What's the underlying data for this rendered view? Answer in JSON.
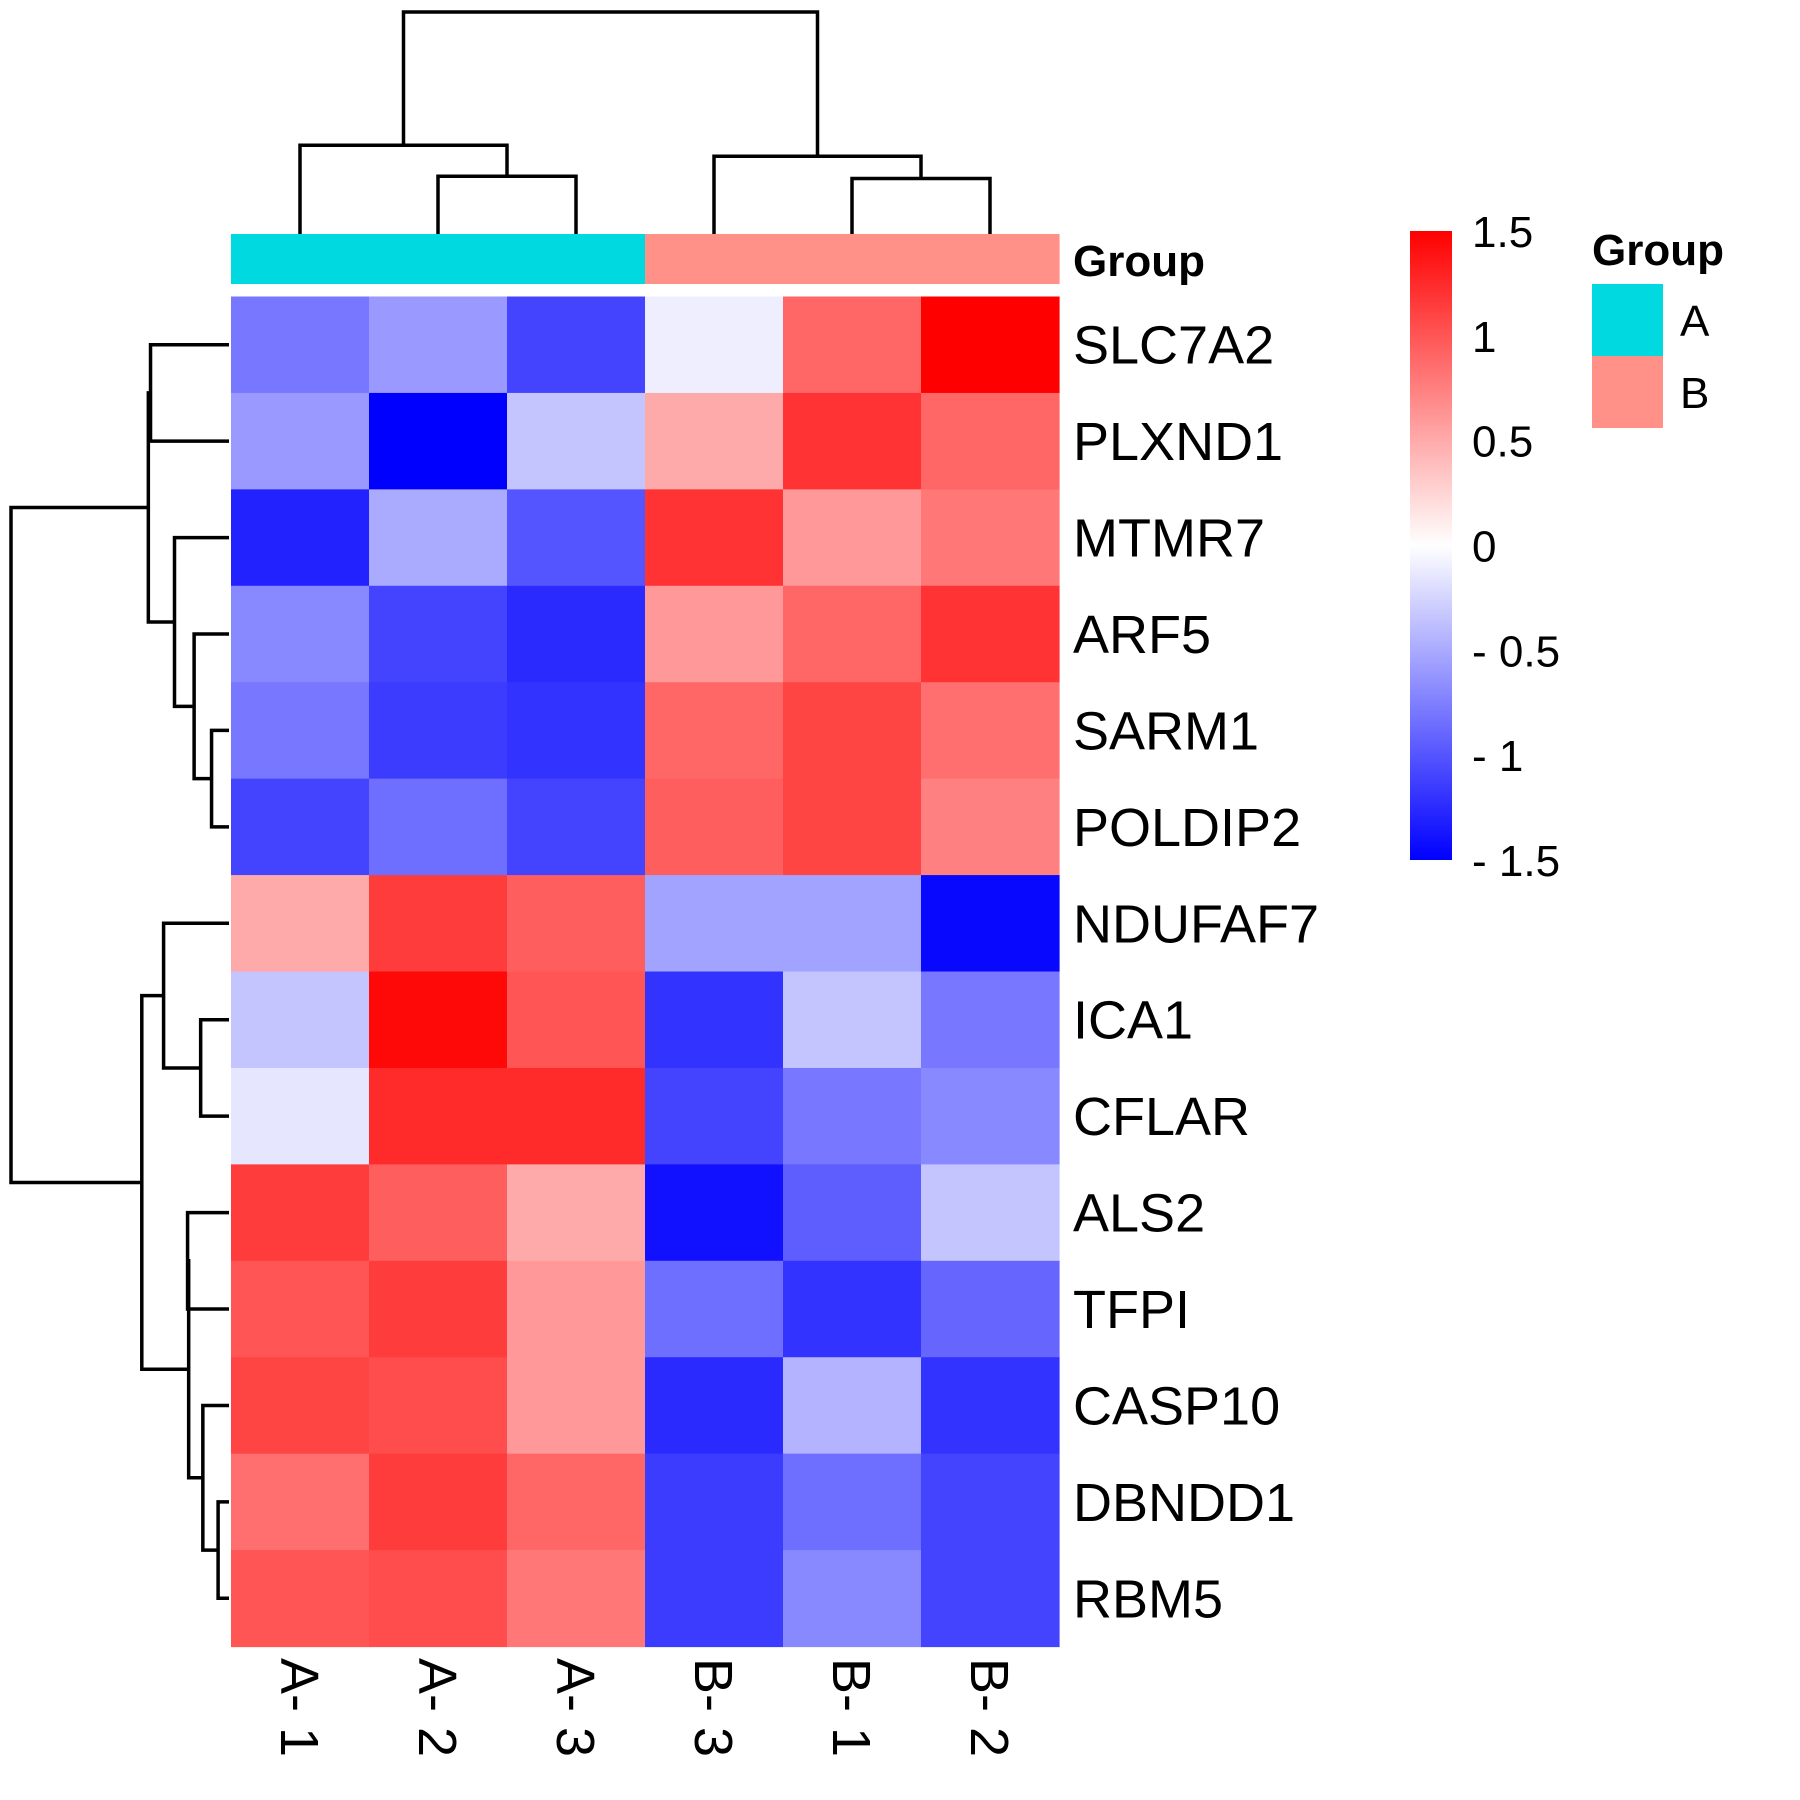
{
  "chart_data": {
    "type": "heatmap",
    "title": "",
    "columns": [
      "A- 1",
      "A- 2",
      "A- 3",
      "B- 3",
      "B- 1",
      "B- 2"
    ],
    "column_groups": [
      "A",
      "A",
      "A",
      "B",
      "B",
      "B"
    ],
    "rows": [
      "SLC7A2",
      "PLXND1",
      "MTMR7",
      "ARF5",
      "SARM1",
      "POLDIP2",
      "NDUFAF7",
      "ICA1",
      "CFLAR",
      "ALS2",
      "TFPI",
      "CASP10",
      "DBNDD1",
      "RBM5"
    ],
    "values": [
      [
        -0.8,
        -0.6,
        -1.1,
        -0.1,
        0.9,
        1.5
      ],
      [
        -0.6,
        -1.5,
        -0.35,
        0.5,
        1.2,
        0.9
      ],
      [
        -1.3,
        -0.5,
        -1.0,
        1.2,
        0.6,
        0.8
      ],
      [
        -0.7,
        -1.1,
        -1.25,
        0.6,
        0.9,
        1.2
      ],
      [
        -0.8,
        -1.15,
        -1.2,
        0.9,
        1.1,
        0.85
      ],
      [
        -1.1,
        -0.85,
        -1.1,
        0.95,
        1.1,
        0.75
      ],
      [
        0.5,
        1.15,
        0.95,
        -0.55,
        -0.55,
        -1.45
      ],
      [
        -0.35,
        1.45,
        1.0,
        -1.2,
        -0.35,
        -0.8
      ],
      [
        -0.15,
        1.25,
        1.25,
        -1.1,
        -0.8,
        -0.7
      ],
      [
        1.15,
        0.95,
        0.5,
        -1.4,
        -0.95,
        -0.35
      ],
      [
        1.0,
        1.15,
        0.6,
        -0.85,
        -1.2,
        -0.9
      ],
      [
        1.1,
        1.05,
        0.6,
        -1.25,
        -0.45,
        -1.2
      ],
      [
        0.85,
        1.15,
        0.9,
        -1.15,
        -0.85,
        -1.1
      ],
      [
        1.0,
        1.05,
        0.8,
        -1.15,
        -0.7,
        -1.1
      ]
    ],
    "color_scale": {
      "min": -1.5,
      "mid": 0,
      "max": 1.5,
      "low": "#0000FF",
      "midcolor": "#FFFFFF",
      "high": "#FF0000"
    },
    "colorbar_ticks": [
      {
        "value": 1.5,
        "label": "1.5"
      },
      {
        "value": 1,
        "label": "1"
      },
      {
        "value": 0.5,
        "label": "0.5"
      },
      {
        "value": 0,
        "label": "0"
      },
      {
        "value": -0.5,
        "label": "- 0.5"
      },
      {
        "value": -1,
        "label": "- 1"
      },
      {
        "value": -1.5,
        "label": "- 1.5"
      }
    ],
    "annotation": {
      "title": "Group",
      "legend_title": "Group",
      "levels": [
        {
          "name": "A",
          "color": "#00D9E0"
        },
        {
          "name": "B",
          "color": "#FF9188"
        }
      ]
    },
    "column_dendrogram": {
      "h": 1,
      "c": [
        {
          "h": 0.4,
          "c": [
            0,
            {
              "h": 0.26,
              "c": [
                1,
                2
              ]
            }
          ]
        },
        {
          "h": 0.35,
          "c": [
            3,
            {
              "h": 0.25,
              "c": [
                4,
                5
              ]
            }
          ]
        }
      ]
    },
    "row_dendrogram": {
      "h": 1,
      "c": [
        {
          "h": 0.37,
          "c": [
            {
              "h": 0.36,
              "c": [
                0,
                1
              ]
            },
            {
              "h": 0.25,
              "c": [
                2,
                {
                  "h": 0.16,
                  "c": [
                    3,
                    {
                      "h": 0.08,
                      "c": [
                        4,
                        5
                      ]
                    }
                  ]
                }
              ]
            }
          ]
        },
        {
          "h": 0.4,
          "c": [
            {
              "h": 0.3,
              "c": [
                6,
                {
                  "h": 0.13,
                  "c": [
                    7,
                    8
                  ]
                }
              ]
            },
            {
              "h": 0.185,
              "c": [
                {
                  "h": 0.19,
                  "c": [
                    9,
                    10
                  ]
                },
                {
                  "h": 0.12,
                  "c": [
                    11,
                    {
                      "h": 0.05,
                      "c": [
                        12,
                        13
                      ]
                    }
                  ]
                }
              ]
            }
          ]
        }
      ]
    }
  }
}
